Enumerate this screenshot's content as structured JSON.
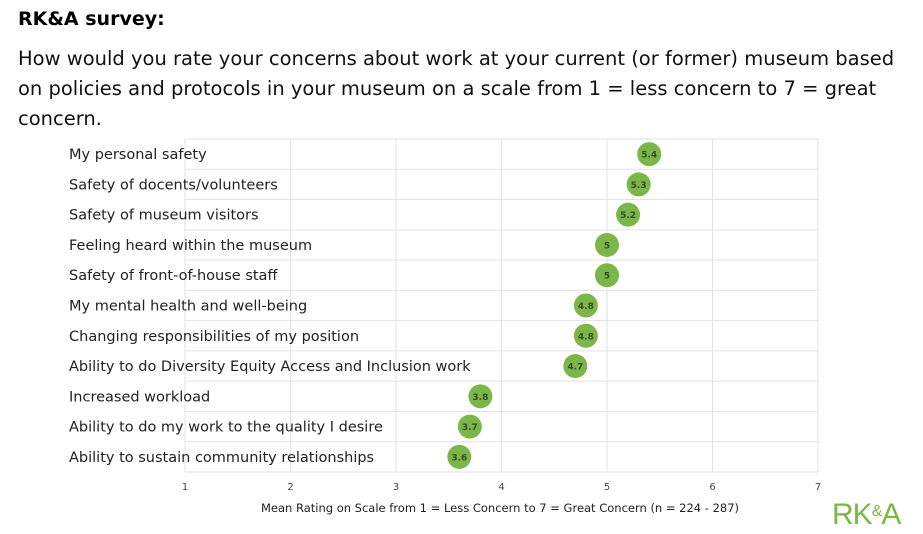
{
  "header": {
    "title": "RK&A survey:",
    "question": "How would you rate your concerns about work at your current (or former) museum based on policies and protocols in your museum on a scale from 1 = less concern to 7 = great concern."
  },
  "logo": {
    "text": "RK&A",
    "color": "#7ab648"
  },
  "chart_data": {
    "type": "scatter",
    "categories": [
      "My personal safety",
      "Safety of docents/volunteers",
      "Safety of museum visitors",
      "Feeling heard within the museum",
      "Safety of front-of-house staff",
      "My mental health and well-being",
      "Changing responsibilities of my position",
      "Ability to do Diversity Equity Access and Inclusion work",
      "Increased workload",
      "Ability to do my work to the quality I desire",
      "Ability to sustain community relationships"
    ],
    "values": [
      5.4,
      5.3,
      5.2,
      5,
      5,
      4.8,
      4.8,
      4.7,
      3.8,
      3.7,
      3.6
    ],
    "xlabel": "Mean Rating on Scale from 1 = Less Concern to 7 = Great Concern (n = 224 - 287)",
    "xlim": [
      1,
      7
    ],
    "xticks": [
      1,
      2,
      3,
      4,
      5,
      6,
      7
    ],
    "grid": true,
    "marker_color": "#7ab648"
  }
}
